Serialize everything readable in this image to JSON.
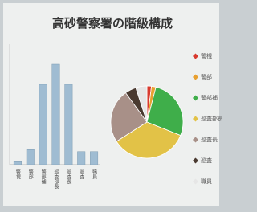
{
  "chart_data": [
    {
      "type": "bar",
      "title": "高砂警察署の階級構成",
      "categories": [
        "警視",
        "警部",
        "警部補",
        "巡査部長",
        "巡査長",
        "巡査",
        "職員"
      ],
      "values": [
        0.3,
        1.5,
        8,
        10,
        8,
        1.3,
        1.3
      ],
      "color": "#9fbcd2",
      "ylim": [
        0,
        12
      ]
    },
    {
      "type": "pie",
      "categories": [
        "警視",
        "警部",
        "警部補",
        "巡査部長",
        "巡査長",
        "巡査",
        "職員"
      ],
      "values": [
        2,
        2,
        27,
        35,
        24,
        5,
        5
      ],
      "colors": [
        "#d83a2e",
        "#e8a030",
        "#3fae4a",
        "#e2c247",
        "#a89088",
        "#4a3a30",
        "#e6e6e6"
      ]
    }
  ]
}
